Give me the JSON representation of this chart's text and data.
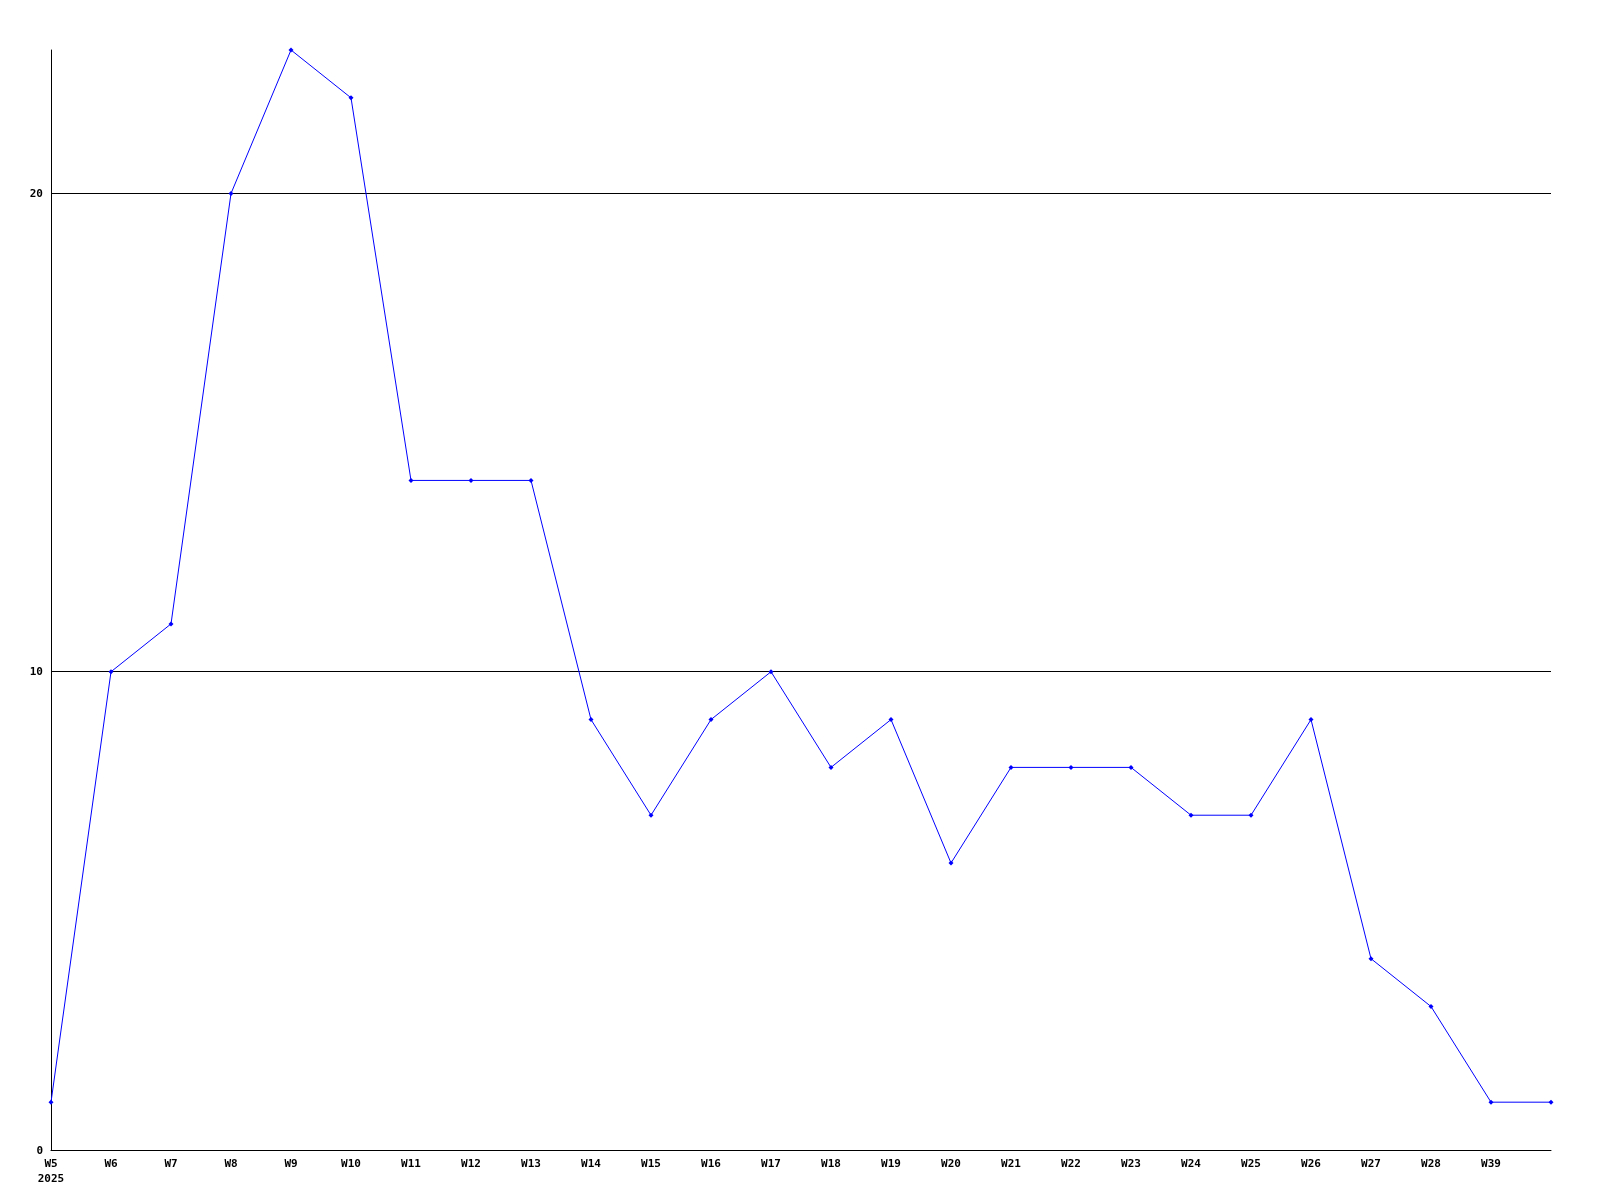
{
  "chart_data": {
    "type": "line",
    "categories": [
      "W5\n2025",
      "W6",
      "W7",
      "W8",
      "W9",
      "W10",
      "W11",
      "W12",
      "W13",
      "W14",
      "W15",
      "W16",
      "W17",
      "W18",
      "W19",
      "W20",
      "W21",
      "W22",
      "W23",
      "W24",
      "W25",
      "W26",
      "W27",
      "W28",
      "W39",
      null
    ],
    "series": [
      {
        "color": "#0000ff",
        "values": [
          1,
          10,
          11,
          20,
          23,
          22,
          14,
          14,
          14,
          9,
          7,
          9,
          10,
          8,
          9,
          6,
          8,
          8,
          8,
          7,
          7,
          9,
          4,
          3,
          1,
          1
        ]
      }
    ],
    "ylim": [
      0,
      23
    ],
    "yticks": [
      0,
      10,
      20
    ],
    "grid": "y",
    "marker": "diamond",
    "line_style": "solid"
  }
}
